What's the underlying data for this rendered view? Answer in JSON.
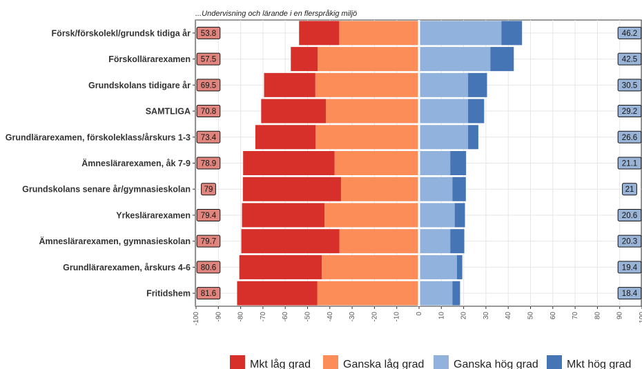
{
  "chart_data": {
    "type": "bar",
    "subtype": "diverging-stacked-horizontal",
    "title": "...Undervisning och lärande i en flerspråkig miljö",
    "xlim": [
      -100,
      100
    ],
    "x_ticks": [
      -100,
      -90,
      -80,
      -70,
      -60,
      -50,
      -40,
      -30,
      -20,
      -10,
      0,
      10,
      20,
      30,
      40,
      50,
      60,
      70,
      80,
      90,
      100
    ],
    "categories": [
      "Försk/förskolekl/grundsk tidiga år",
      "Förskollärarexamen",
      "Grundskolans tidigare år",
      "SAMTLIGA",
      "Grundlärarexamen, förskoleklass/årskurs 1-3",
      "Ämneslärarexamen, åk 7-9",
      "Grundskolans senare år/gymnasieskolan",
      "Yrkeslärarexamen",
      "Ämneslärarexamen, gymnasieskolan",
      "Grundlärarexamen, årskurs 4-6",
      "Fritidshem"
    ],
    "series": [
      {
        "name": "Mkt låg grad",
        "color": "#d7302a",
        "side": "negative",
        "values": [
          18,
          12,
          23,
          29,
          27,
          41,
          44,
          37,
          44,
          37,
          36
        ]
      },
      {
        "name": "Ganska låg grad",
        "color": "#fc8d59",
        "side": "negative",
        "values": [
          35.8,
          45.5,
          46.5,
          41.8,
          46.4,
          37.9,
          35,
          42.4,
          35.7,
          43.6,
          45.6
        ]
      },
      {
        "name": "Ganska hög grad",
        "color": "#91b2dd",
        "side": "positive",
        "values": [
          37,
          32,
          22,
          22,
          22,
          14,
          15,
          16,
          14,
          17,
          15
        ]
      },
      {
        "name": "Mkt hög grad",
        "color": "#4575b4",
        "side": "positive",
        "values": [
          9.2,
          10.5,
          8.5,
          7.2,
          4.6,
          7.1,
          6,
          4.6,
          6.3,
          2.4,
          3.4
        ]
      }
    ],
    "low_totals": [
      "53.8",
      "57.5",
      "69.5",
      "70.8",
      "73.4",
      "78.9",
      "79",
      "79.4",
      "79.7",
      "80.6",
      "81.6"
    ],
    "high_totals": [
      "46.2",
      "42.5",
      "30.5",
      "29.2",
      "26.6",
      "21.1",
      "21",
      "20.6",
      "20.3",
      "19.4",
      "18.4"
    ],
    "low_label_color": "#e0857d",
    "high_label_color": "#9ab4d8",
    "grid": true,
    "legend_position": "bottom"
  }
}
